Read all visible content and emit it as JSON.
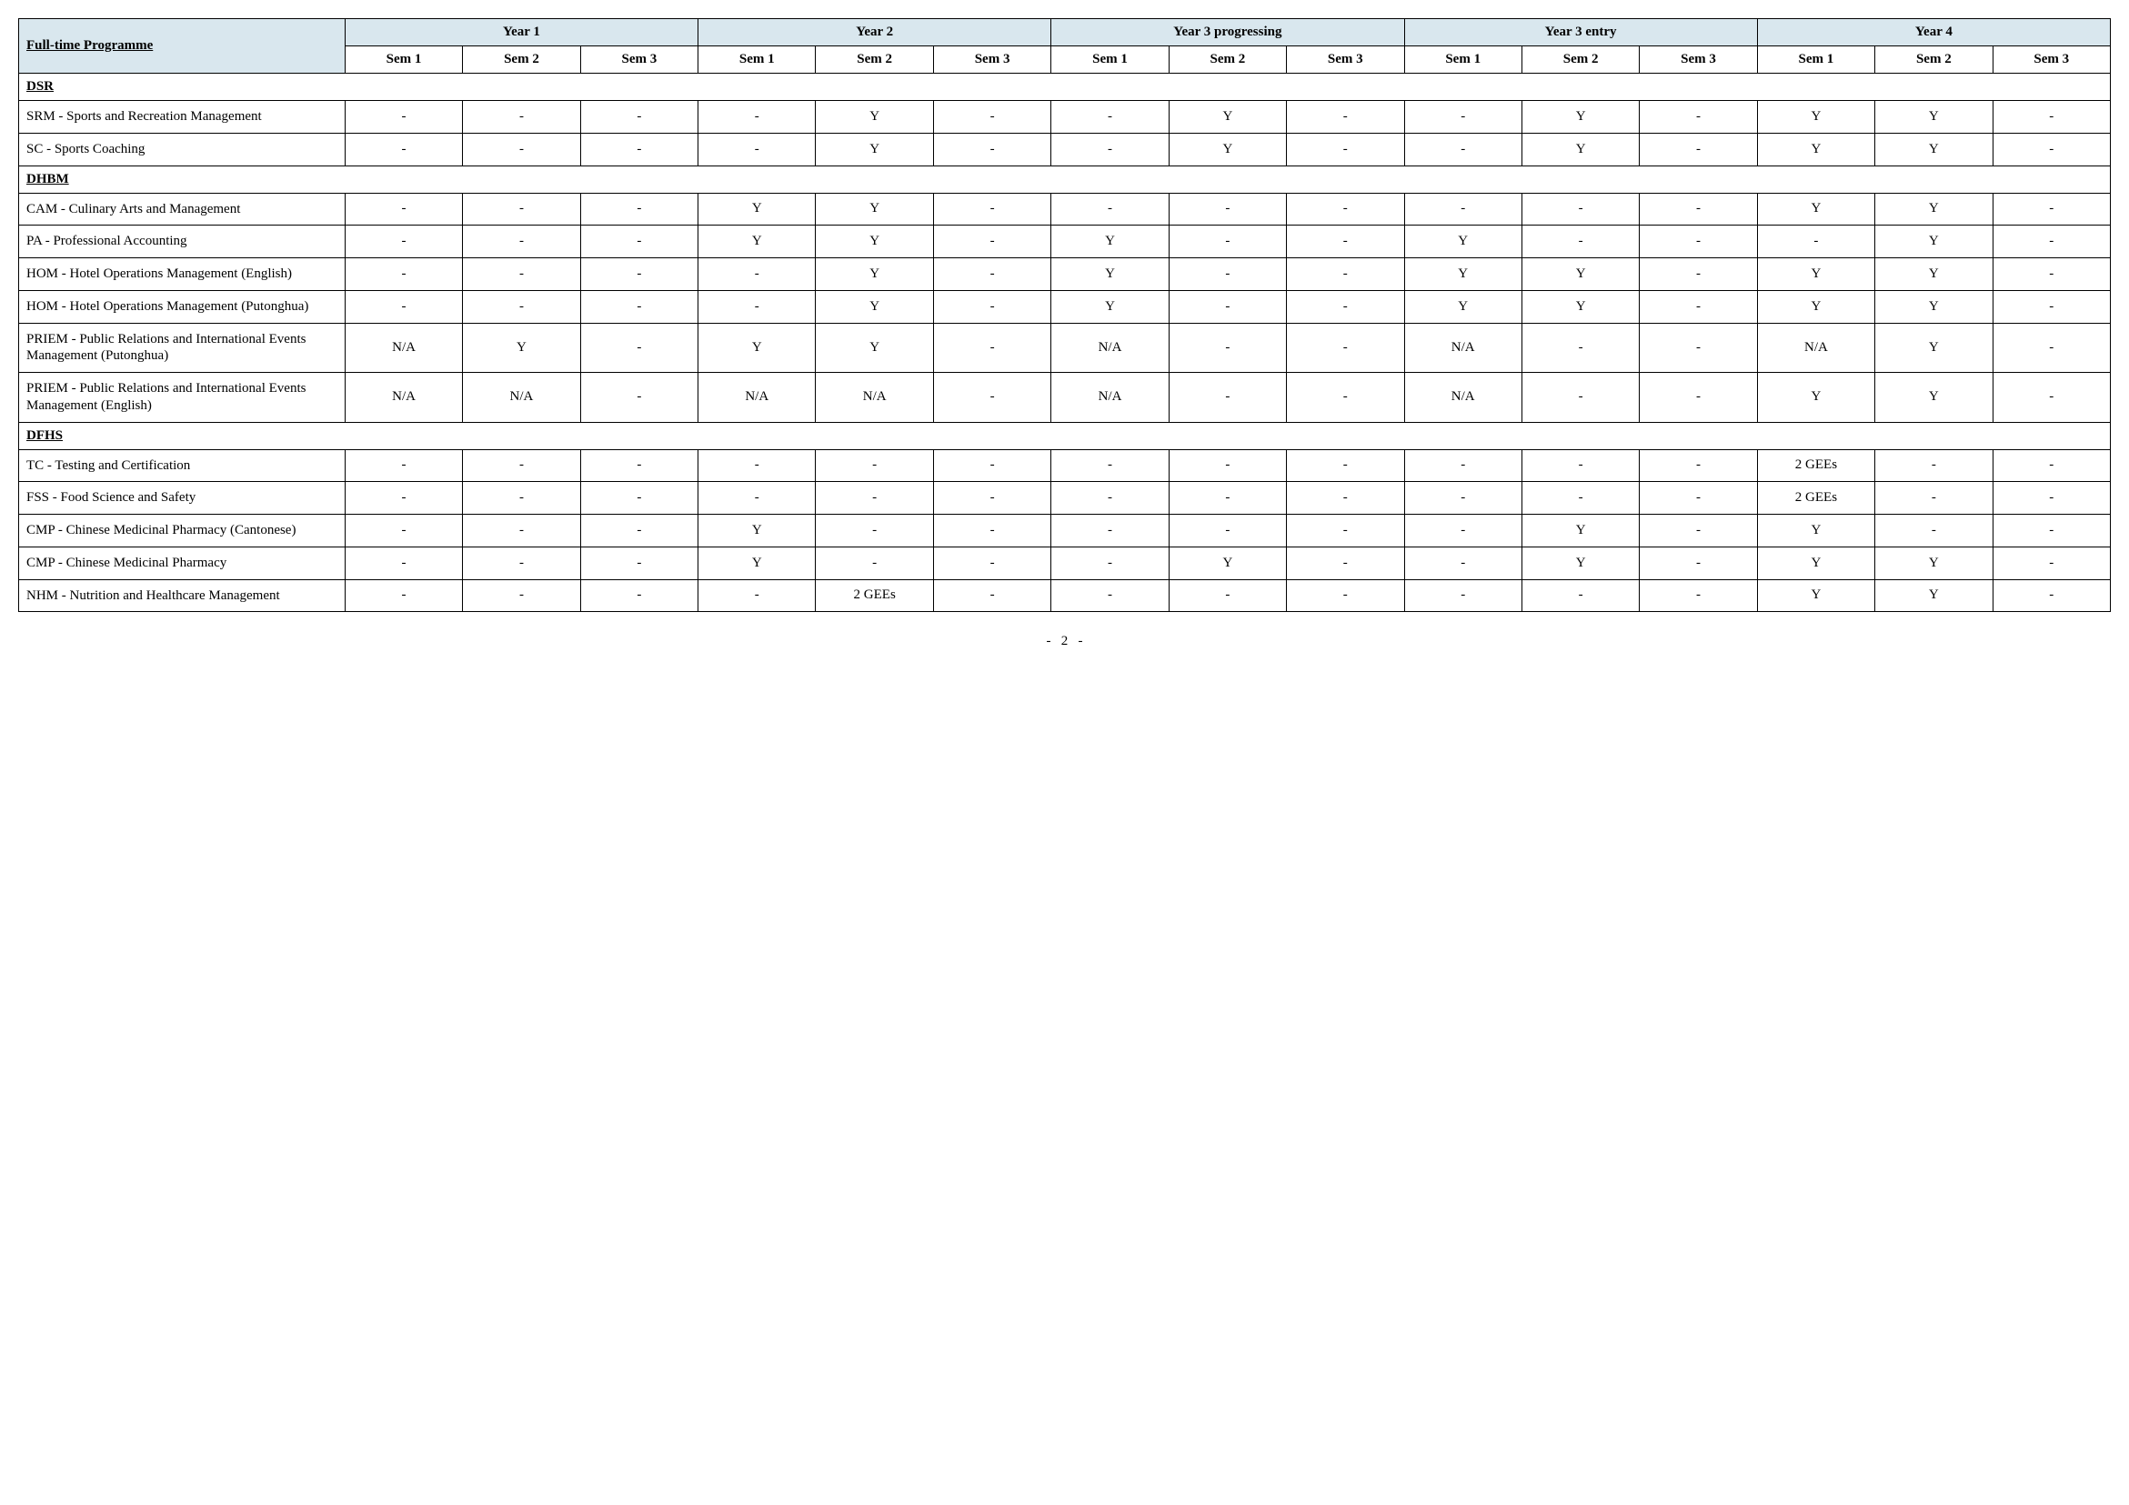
{
  "header_bg": "#d9e7ee",
  "border_color": "#000000",
  "programme_header": "Full-time Programme",
  "year_groups": [
    "Year 1",
    "Year 2",
    "Year 3 progressing",
    "Year 3 entry",
    "Year 4"
  ],
  "sem_labels": [
    "Sem 1",
    "Sem 2",
    "Sem 3"
  ],
  "sections": [
    {
      "title": "DSR",
      "rows": [
        {
          "name": "SRM - Sports and Recreation Management",
          "cells": [
            "-",
            "-",
            "-",
            "-",
            "Y",
            "-",
            "-",
            "Y",
            "-",
            "-",
            "Y",
            "-",
            "Y",
            "Y",
            "-"
          ]
        },
        {
          "name": "SC - Sports Coaching",
          "cells": [
            "-",
            "-",
            "-",
            "-",
            "Y",
            "-",
            "-",
            "Y",
            "-",
            "-",
            "Y",
            "-",
            "Y",
            "Y",
            "-"
          ]
        }
      ]
    },
    {
      "title": "DHBM",
      "rows": [
        {
          "name": "CAM - Culinary Arts and Management",
          "cells": [
            "-",
            "-",
            "-",
            "Y",
            "Y",
            "-",
            "-",
            "-",
            "-",
            "-",
            "-",
            "-",
            "Y",
            "Y",
            "-"
          ]
        },
        {
          "name": "PA - Professional Accounting",
          "cells": [
            "-",
            "-",
            "-",
            "Y",
            "Y",
            "-",
            "Y",
            "-",
            "-",
            "Y",
            "-",
            "-",
            "-",
            "Y",
            "-"
          ]
        },
        {
          "name": "HOM - Hotel Operations Management (English)",
          "cells": [
            "-",
            "-",
            "-",
            "-",
            "Y",
            "-",
            "Y",
            "-",
            "-",
            "Y",
            "Y",
            "-",
            "Y",
            "Y",
            "-"
          ]
        },
        {
          "name": "HOM - Hotel Operations Management (Putonghua)",
          "cells": [
            "-",
            "-",
            "-",
            "-",
            "Y",
            "-",
            "Y",
            "-",
            "-",
            "Y",
            "Y",
            "-",
            "Y",
            "Y",
            "-"
          ]
        },
        {
          "name": "PRIEM - Public Relations and International Events Management (Putonghua)",
          "cells": [
            "N/A",
            "Y",
            "-",
            "Y",
            "Y",
            "-",
            "N/A",
            "-",
            "-",
            "N/A",
            "-",
            "-",
            "N/A",
            "Y",
            "-"
          ]
        },
        {
          "name": "PRIEM - Public Relations and International Events Management (English)",
          "cells": [
            "N/A",
            "N/A",
            "-",
            "N/A",
            "N/A",
            "-",
            "N/A",
            "-",
            "-",
            "N/A",
            "-",
            "-",
            "Y",
            "Y",
            "-"
          ]
        }
      ]
    },
    {
      "title": "DFHS",
      "rows": [
        {
          "name": "TC - Testing and Certification",
          "cells": [
            "-",
            "-",
            "-",
            "-",
            "-",
            "-",
            "-",
            "-",
            "-",
            "-",
            "-",
            "-",
            "2 GEEs",
            "-",
            "-"
          ]
        },
        {
          "name": "FSS - Food Science and Safety",
          "cells": [
            "-",
            "-",
            "-",
            "-",
            "-",
            "-",
            "-",
            "-",
            "-",
            "-",
            "-",
            "-",
            "2 GEEs",
            "-",
            "-"
          ]
        },
        {
          "name": "CMP - Chinese Medicinal Pharmacy (Cantonese)",
          "cells": [
            "-",
            "-",
            "-",
            "Y",
            "-",
            "-",
            "-",
            "-",
            "-",
            "-",
            "Y",
            "-",
            "Y",
            "-",
            "-"
          ]
        },
        {
          "name": "CMP - Chinese Medicinal Pharmacy",
          "cells": [
            "-",
            "-",
            "-",
            "Y",
            "-",
            "-",
            "-",
            "Y",
            "-",
            "-",
            "Y",
            "-",
            "Y",
            "Y",
            "-"
          ]
        },
        {
          "name": "NHM - Nutrition and Healthcare Management",
          "cells": [
            "-",
            "-",
            "-",
            "-",
            "2 GEEs",
            "-",
            "-",
            "-",
            "-",
            "-",
            "-",
            "-",
            "Y",
            "Y",
            "-"
          ]
        }
      ]
    }
  ],
  "page_number": "2"
}
